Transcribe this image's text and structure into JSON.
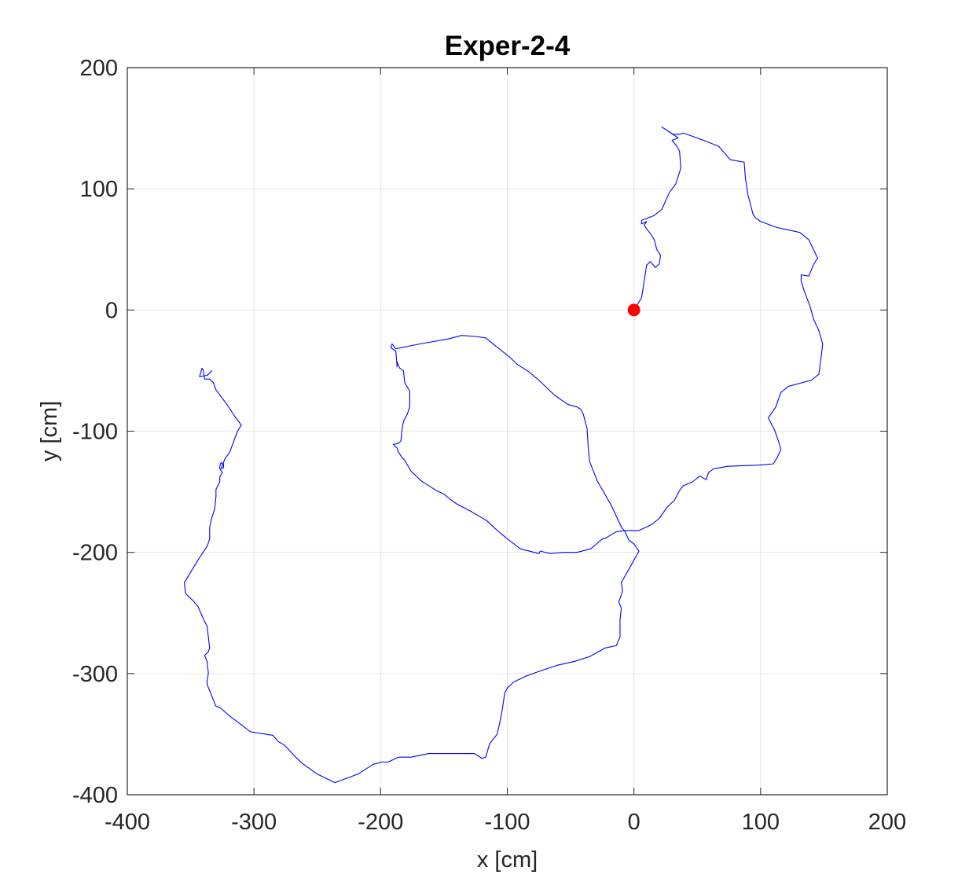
{
  "chart_data": {
    "type": "line",
    "title": "Exper-2-4",
    "xlabel": "x [cm]",
    "ylabel": "y [cm]",
    "xlim": [
      -400,
      200
    ],
    "ylim": [
      -400,
      200
    ],
    "xticks": [
      -400,
      -300,
      -200,
      -100,
      0,
      100,
      200
    ],
    "yticks": [
      -400,
      -300,
      -200,
      -100,
      0,
      100,
      200
    ],
    "grid": true,
    "colors": {
      "trajectory": "#0000ff",
      "start_marker": "#ff0000",
      "grid": "#e6e6e6",
      "axes": "#262626"
    },
    "start_marker": {
      "x": 0,
      "y": 0
    },
    "series": [
      {
        "values": [
          [
            0,
            0
          ],
          [
            6,
            10
          ],
          [
            9,
            30
          ],
          [
            10,
            37
          ],
          [
            13,
            40
          ],
          [
            17,
            35
          ],
          [
            20,
            38
          ],
          [
            21,
            45
          ],
          [
            18,
            50
          ],
          [
            16,
            58
          ],
          [
            13,
            63
          ],
          [
            10,
            67
          ],
          [
            8,
            70
          ],
          [
            10,
            73
          ],
          [
            6,
            71
          ],
          [
            6,
            74
          ],
          [
            16,
            78
          ],
          [
            22,
            83
          ],
          [
            28,
            97
          ],
          [
            33,
            104
          ],
          [
            37,
            117
          ],
          [
            36,
            131
          ],
          [
            34,
            135
          ],
          [
            30,
            140
          ],
          [
            35,
            142
          ],
          [
            22,
            151
          ],
          [
            31,
            145
          ],
          [
            36,
            145
          ],
          [
            39,
            146
          ],
          [
            55,
            140
          ],
          [
            67,
            135
          ],
          [
            76,
            124
          ],
          [
            87,
            122
          ],
          [
            88,
            109
          ],
          [
            90,
            95
          ],
          [
            94,
            79
          ],
          [
            96,
            76
          ],
          [
            100,
            73
          ],
          [
            113,
            68
          ],
          [
            122,
            66
          ],
          [
            131,
            64
          ],
          [
            138,
            58
          ],
          [
            144,
            45
          ],
          [
            145,
            43
          ],
          [
            142,
            38
          ],
          [
            138,
            28
          ],
          [
            132,
            29
          ],
          [
            132,
            24
          ],
          [
            134,
            17
          ],
          [
            139,
            3
          ],
          [
            142,
            -8
          ],
          [
            146,
            -17
          ],
          [
            149,
            -28
          ],
          [
            148,
            -37
          ],
          [
            146,
            -53
          ],
          [
            140,
            -58
          ],
          [
            122,
            -63
          ],
          [
            116,
            -68
          ],
          [
            112,
            -80
          ],
          [
            106,
            -89
          ],
          [
            111,
            -99
          ],
          [
            114,
            -108
          ],
          [
            116,
            -115
          ],
          [
            113,
            -122
          ],
          [
            110,
            -127
          ],
          [
            98,
            -128
          ],
          [
            74,
            -129
          ],
          [
            63,
            -131
          ],
          [
            59,
            -134
          ],
          [
            57,
            -140
          ],
          [
            52,
            -137
          ],
          [
            46,
            -142
          ],
          [
            39,
            -145
          ],
          [
            36,
            -149
          ],
          [
            32,
            -157
          ],
          [
            26,
            -163
          ],
          [
            20,
            -172
          ],
          [
            14,
            -177
          ],
          [
            4,
            -182
          ],
          [
            -7,
            -182
          ],
          [
            -14,
            -183
          ],
          [
            -22,
            -188
          ],
          [
            -25,
            -189
          ],
          [
            -34,
            -197
          ],
          [
            -45,
            -200
          ],
          [
            -56,
            -200
          ],
          [
            -66,
            -201
          ],
          [
            -74,
            -199
          ],
          [
            -75,
            -201
          ],
          [
            -90,
            -197
          ],
          [
            -91,
            -196
          ],
          [
            -101,
            -188
          ],
          [
            -110,
            -180
          ],
          [
            -116,
            -174
          ],
          [
            -129,
            -166
          ],
          [
            -140,
            -160
          ],
          [
            -144,
            -157
          ],
          [
            -150,
            -152
          ],
          [
            -156,
            -149
          ],
          [
            -168,
            -141
          ],
          [
            -176,
            -133
          ],
          [
            -181,
            -124
          ],
          [
            -183,
            -122
          ],
          [
            -186,
            -117
          ],
          [
            -187,
            -114
          ],
          [
            -190,
            -111
          ],
          [
            -186,
            -110
          ],
          [
            -184,
            -108
          ],
          [
            -183,
            -98
          ],
          [
            -182,
            -92
          ],
          [
            -179,
            -86
          ],
          [
            -177,
            -80
          ],
          [
            -177,
            -67
          ],
          [
            -181,
            -60
          ],
          [
            -182,
            -50
          ],
          [
            -185,
            -48
          ],
          [
            -187,
            -43
          ],
          [
            -187,
            -47
          ],
          [
            -188,
            -34
          ],
          [
            -192,
            -31
          ],
          [
            -191,
            -28
          ],
          [
            -188,
            -32
          ],
          [
            -169,
            -28
          ],
          [
            -147,
            -24
          ],
          [
            -136,
            -21
          ],
          [
            -124,
            -22
          ],
          [
            -117,
            -23
          ],
          [
            -110,
            -29
          ],
          [
            -98,
            -39
          ],
          [
            -92,
            -45
          ],
          [
            -83,
            -51
          ],
          [
            -75,
            -58
          ],
          [
            -70,
            -63
          ],
          [
            -63,
            -70
          ],
          [
            -59,
            -73
          ],
          [
            -52,
            -78
          ],
          [
            -45,
            -80
          ],
          [
            -42,
            -82
          ],
          [
            -40,
            -86
          ],
          [
            -37,
            -98
          ],
          [
            -36,
            -115
          ],
          [
            -35,
            -125
          ],
          [
            -29,
            -141
          ],
          [
            -18,
            -161
          ],
          [
            -10,
            -179
          ],
          [
            -7,
            -183
          ],
          [
            -4,
            -190
          ],
          [
            0,
            -193
          ],
          [
            4,
            -199
          ],
          [
            -3,
            -212
          ],
          [
            -10,
            -225
          ],
          [
            -9,
            -232
          ],
          [
            -12,
            -241
          ],
          [
            -10,
            -246
          ],
          [
            -11,
            -256
          ],
          [
            -11,
            -270
          ],
          [
            -14,
            -277
          ],
          [
            -23,
            -279
          ],
          [
            -35,
            -286
          ],
          [
            -47,
            -290
          ],
          [
            -60,
            -293
          ],
          [
            -77,
            -299
          ],
          [
            -85,
            -302
          ],
          [
            -95,
            -307
          ],
          [
            -100,
            -312
          ],
          [
            -102,
            -316
          ],
          [
            -104,
            -330
          ],
          [
            -106,
            -341
          ],
          [
            -108,
            -350
          ],
          [
            -114,
            -358
          ],
          [
            -117,
            -369
          ],
          [
            -120,
            -370
          ],
          [
            -126,
            -366
          ],
          [
            -147,
            -366
          ],
          [
            -162,
            -366
          ],
          [
            -176,
            -369
          ],
          [
            -186,
            -369
          ],
          [
            -194,
            -373
          ],
          [
            -199,
            -373
          ],
          [
            -206,
            -375
          ],
          [
            -218,
            -383
          ],
          [
            -236,
            -390
          ],
          [
            -250,
            -383
          ],
          [
            -262,
            -374
          ],
          [
            -268,
            -368
          ],
          [
            -276,
            -359
          ],
          [
            -281,
            -356
          ],
          [
            -285,
            -351
          ],
          [
            -291,
            -350
          ],
          [
            -297,
            -349
          ],
          [
            -303,
            -348
          ],
          [
            -309,
            -343
          ],
          [
            -318,
            -336
          ],
          [
            -327,
            -328
          ],
          [
            -330,
            -327
          ],
          [
            -337,
            -309
          ],
          [
            -337,
            -306
          ],
          [
            -336,
            -300
          ],
          [
            -337,
            -290
          ],
          [
            -339,
            -285
          ],
          [
            -336,
            -282
          ],
          [
            -335,
            -279
          ],
          [
            -337,
            -261
          ],
          [
            -339,
            -257
          ],
          [
            -342,
            -250
          ],
          [
            -344,
            -245
          ],
          [
            -348,
            -240
          ],
          [
            -354,
            -234
          ],
          [
            -355,
            -225
          ],
          [
            -344,
            -206
          ],
          [
            -337,
            -195
          ],
          [
            -335,
            -189
          ],
          [
            -335,
            -180
          ],
          [
            -334,
            -174
          ],
          [
            -331,
            -164
          ],
          [
            -330,
            -154
          ],
          [
            -330,
            -148
          ],
          [
            -327,
            -142
          ],
          [
            -327,
            -138
          ],
          [
            -325,
            -134
          ],
          [
            -327,
            -131
          ],
          [
            -327,
            -129
          ],
          [
            -326,
            -126
          ],
          [
            -324,
            -127
          ],
          [
            -324,
            -130
          ],
          [
            -326,
            -131
          ],
          [
            -323,
            -123
          ],
          [
            -319,
            -117
          ],
          [
            -313,
            -100
          ],
          [
            -310,
            -95
          ],
          [
            -315,
            -88
          ],
          [
            -322,
            -77
          ],
          [
            -330,
            -66
          ],
          [
            -332,
            -60
          ],
          [
            -335,
            -57
          ],
          [
            -339,
            -57
          ],
          [
            -340,
            -50
          ],
          [
            -341,
            -48
          ],
          [
            -343,
            -55
          ],
          [
            -337,
            -54
          ],
          [
            -333,
            -50
          ]
        ]
      }
    ]
  }
}
